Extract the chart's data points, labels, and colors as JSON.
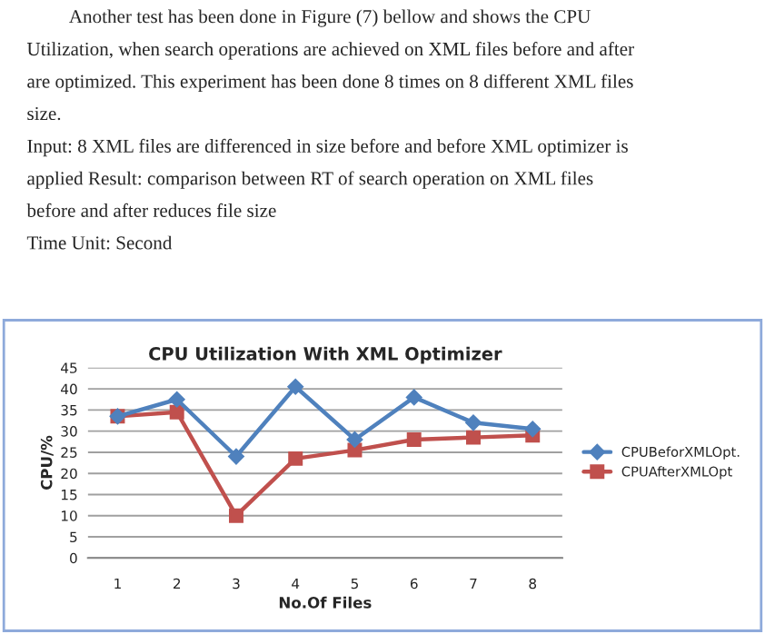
{
  "chart_data": {
    "type": "line",
    "title": "CPU Utilization With XML Optimizer",
    "xlabel": "No.Of Files",
    "ylabel": "CPU/%",
    "annotations": [
      "Another test has been done in Figure (7) bellow and shows the CPU",
      "Utilization, when search operations are achieved on XML files before and after",
      "are optimized. This experiment has been done 8 times on 8 different XML files",
      "size.",
      "Input: 8 XML files are differenced in size before and before XML optimizer is",
      "applied Result: comparison between RT of search operation on XML files",
      "before and after reduces file size",
      "Time Unit: Second"
    ],
    "categories": [
      "1",
      "2",
      "3",
      "4",
      "5",
      "6",
      "7",
      "8"
    ],
    "series": [
      {
        "name": "CPUBeforXMLOpt.",
        "color": "#4f81bd",
        "marker": "diamond",
        "values": [
          33.5,
          37.5,
          24,
          40.5,
          28,
          38,
          32,
          30.5
        ]
      },
      {
        "name": "CPUAfterXMLOpt",
        "color": "#c0504d",
        "marker": "square",
        "values": [
          33.5,
          34.5,
          10,
          23.5,
          25.5,
          28,
          28.5,
          29
        ]
      }
    ],
    "ylim": [
      0,
      45
    ],
    "yticks": [
      0,
      5,
      10,
      15,
      20,
      25,
      30,
      35,
      40,
      45
    ],
    "grid": "y",
    "legend": "right"
  }
}
